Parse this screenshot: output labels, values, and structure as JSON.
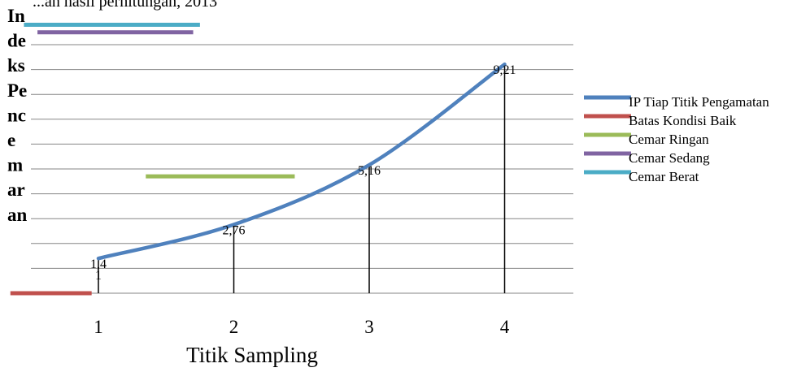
{
  "page": {
    "top_fragment": "...an hasil perhitungan, 2013"
  },
  "chart_data": {
    "type": "line",
    "title": "",
    "xlabel": "Titik Sampling",
    "ylabel_lines": [
      "In",
      "de",
      "ks",
      "Pe",
      "nc",
      "e",
      "m",
      "ar",
      "an"
    ],
    "categories": [
      "1",
      "2",
      "3",
      "4"
    ],
    "ylim": [
      0,
      10
    ],
    "grid": true,
    "legend_position": "right",
    "series": [
      {
        "name": "IP Tiap Titik Pengamatan",
        "values": [
          1.4,
          2.76,
          5.16,
          9.21
        ],
        "labels": [
          "1,4",
          "2,76",
          "5,16",
          "9,21"
        ],
        "color": "#4f81bd"
      }
    ],
    "reference_lines": [
      {
        "name": "Batas Kondisi Baik",
        "value": 0,
        "color": "#c0504d"
      },
      {
        "name": "Cemar      Ringan",
        "value": 4.7,
        "color": "#9bbb59"
      },
      {
        "name": "Cemar      Sedang",
        "value": 10.5,
        "color": "#8064a2"
      },
      {
        "name": "Cemar Berat",
        "value": 10.8,
        "color": "#4bacc6"
      }
    ],
    "extra_label": "1"
  }
}
